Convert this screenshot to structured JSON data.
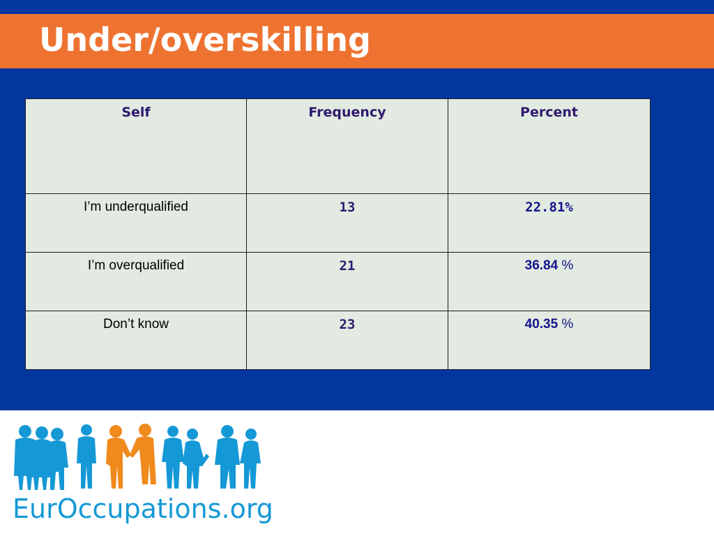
{
  "slide": {
    "title": "Under/overskilling"
  },
  "table": {
    "headers": [
      "Self",
      "Frequency",
      "Percent"
    ],
    "rows": [
      {
        "label": "I’m underqualified",
        "frequency": "13",
        "percent": "22.81%",
        "unit": ""
      },
      {
        "label": "I’m overqualified",
        "frequency": "21",
        "percent": "36.84",
        "unit": " %"
      },
      {
        "label": "Don’t know",
        "frequency": "23",
        "percent": "40.35",
        "unit": " %"
      }
    ]
  },
  "logo": {
    "text": "EurOccupations.org",
    "colors": {
      "people": "#1598d6",
      "highlight": "#f08a1c"
    }
  },
  "colors": {
    "background": "#0436a0",
    "title_bar": "#ee7330",
    "table_fill": "#e2eae2"
  }
}
